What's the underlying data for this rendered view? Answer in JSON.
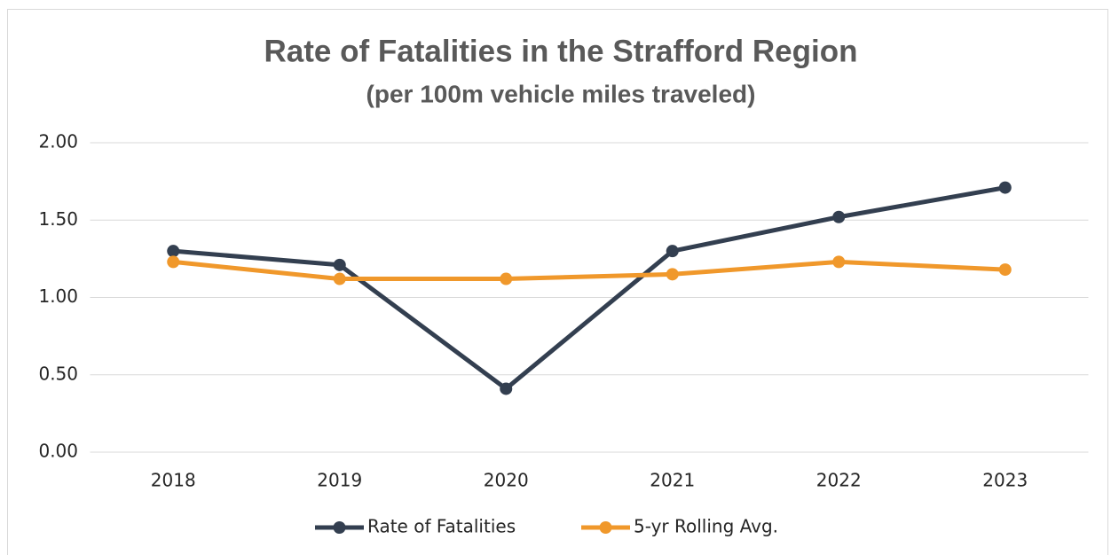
{
  "chart_data": {
    "type": "line",
    "title": "Rate of Fatalities in the Strafford Region",
    "subtitle": "(per 100m vehicle miles traveled)",
    "categories": [
      "2018",
      "2019",
      "2020",
      "2021",
      "2022",
      "2023"
    ],
    "series": [
      {
        "name": "Rate of Fatalities",
        "color": "#333f50",
        "values": [
          1.3,
          1.21,
          0.41,
          1.3,
          1.52,
          1.71
        ]
      },
      {
        "name": "5-yr Rolling Avg.",
        "color": "#f0982b",
        "values": [
          1.23,
          1.12,
          1.12,
          1.15,
          1.23,
          1.18
        ]
      }
    ],
    "ylim": [
      0,
      2
    ],
    "yticks": [
      {
        "value": 0,
        "label": "0.00"
      },
      {
        "value": 0.5,
        "label": "0.50"
      },
      {
        "value": 1,
        "label": "1.00"
      },
      {
        "value": 1.5,
        "label": "1.50"
      },
      {
        "value": 2,
        "label": "2.00"
      }
    ],
    "grid": true,
    "legend": "bottom"
  }
}
